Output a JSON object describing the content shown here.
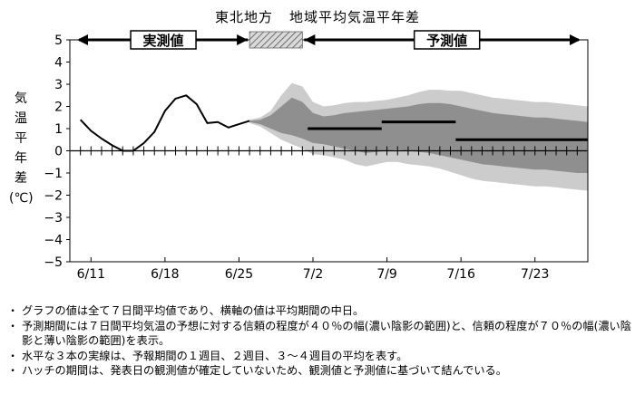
{
  "title": {
    "region": "東北地方",
    "label": "地域平均気温平年差"
  },
  "ylabel_chars": [
    "気",
    "温",
    "平",
    "年",
    "差",
    "(℃)"
  ],
  "banners": {
    "observed": "実測値",
    "forecast": "予測値"
  },
  "notes": [
    "グラフの値は全て７日間平均値であり、横軸の値は平均期間の中日。",
    "予測期間には７日間平均気温の予想に対する信頼の程度が４０％の幅(濃い陰影の範囲)と、信頼の程度が７０％の幅(濃い陰影と薄い陰影の範囲)を表示。",
    "水平な３本の実線は、予報期間の１週目、２週目、３～４週目の平均を表す。",
    "ハッチの期間は、発表日の観測値が確定していないため、観測値と予測値に基づいて結んでいる。"
  ],
  "chart_data": {
    "type": "line",
    "title": "東北地方　地域平均気温平年差",
    "ylabel": "気温平年差(℃)",
    "ylim": [
      -5,
      5
    ],
    "yticks": [
      5,
      4,
      3,
      2,
      1,
      0,
      -1,
      -2,
      -3,
      -4,
      -5
    ],
    "x_start": "6/9",
    "x_end": "7/28",
    "xticks": [
      "6/11",
      "6/18",
      "6/25",
      "7/2",
      "7/9",
      "7/16",
      "7/23"
    ],
    "observed_end": "6/26",
    "hatch_range": [
      "6/26",
      "7/1"
    ],
    "observed": {
      "dates": [
        "6/10",
        "6/11",
        "6/12",
        "6/13",
        "6/14",
        "6/15",
        "6/16",
        "6/17",
        "6/18",
        "6/19",
        "6/20",
        "6/21",
        "6/22",
        "6/23",
        "6/24",
        "6/25",
        "6/26"
      ],
      "values": [
        1.4,
        0.9,
        0.55,
        0.25,
        0.0,
        0.0,
        0.35,
        0.85,
        1.8,
        2.35,
        2.5,
        2.1,
        1.25,
        1.3,
        1.05,
        1.2,
        1.35
      ]
    },
    "forecast_dates": [
      "6/26",
      "6/27",
      "6/28",
      "6/29",
      "6/30",
      "7/1",
      "7/2",
      "7/3",
      "7/4",
      "7/5",
      "7/6",
      "7/7",
      "7/8",
      "7/9",
      "7/10",
      "7/11",
      "7/12",
      "7/13",
      "7/14",
      "7/15",
      "7/16",
      "7/17",
      "7/18",
      "7/19",
      "7/20",
      "7/21",
      "7/22",
      "7/23",
      "7/24",
      "7/25",
      "7/26",
      "7/27",
      "7/28"
    ],
    "band70_upper": [
      1.4,
      1.5,
      1.8,
      2.5,
      3.05,
      2.9,
      2.2,
      2.0,
      2.05,
      2.15,
      2.2,
      2.2,
      2.25,
      2.3,
      2.4,
      2.5,
      2.65,
      2.75,
      2.75,
      2.7,
      2.7,
      2.6,
      2.5,
      2.4,
      2.35,
      2.3,
      2.25,
      2.2,
      2.2,
      2.15,
      2.1,
      2.05,
      2.0
    ],
    "band70_lower": [
      1.25,
      1.1,
      0.8,
      0.5,
      0.3,
      0.1,
      -0.15,
      -0.2,
      -0.3,
      -0.4,
      -0.6,
      -0.7,
      -0.6,
      -0.5,
      -0.5,
      -0.6,
      -0.65,
      -0.7,
      -0.8,
      -0.95,
      -1.1,
      -1.25,
      -1.35,
      -1.4,
      -1.45,
      -1.5,
      -1.55,
      -1.6,
      -1.6,
      -1.65,
      -1.7,
      -1.75,
      -1.8
    ],
    "band40_upper": [
      1.35,
      1.4,
      1.6,
      2.0,
      2.4,
      2.2,
      1.7,
      1.55,
      1.6,
      1.7,
      1.75,
      1.8,
      1.85,
      1.9,
      1.95,
      2.0,
      2.1,
      2.15,
      2.15,
      2.1,
      2.0,
      1.9,
      1.8,
      1.7,
      1.65,
      1.6,
      1.55,
      1.5,
      1.5,
      1.45,
      1.4,
      1.35,
      1.3
    ],
    "band40_lower": [
      1.3,
      1.2,
      1.0,
      0.8,
      0.7,
      0.55,
      0.35,
      0.3,
      0.2,
      0.1,
      0.0,
      -0.1,
      -0.05,
      0.0,
      0.05,
      0.0,
      -0.05,
      -0.1,
      -0.2,
      -0.3,
      -0.4,
      -0.5,
      -0.6,
      -0.65,
      -0.7,
      -0.75,
      -0.8,
      -0.85,
      -0.85,
      -0.9,
      -0.95,
      -1.0,
      -1.0
    ],
    "weekly_means": [
      {
        "label": "1週目",
        "start": "7/2",
        "end": "7/8",
        "value": 1.0
      },
      {
        "label": "2週目",
        "start": "7/9",
        "end": "7/15",
        "value": 1.3
      },
      {
        "label": "3～4週目",
        "start": "7/16",
        "end": "7/28",
        "value": 0.5
      }
    ],
    "grid": false
  }
}
